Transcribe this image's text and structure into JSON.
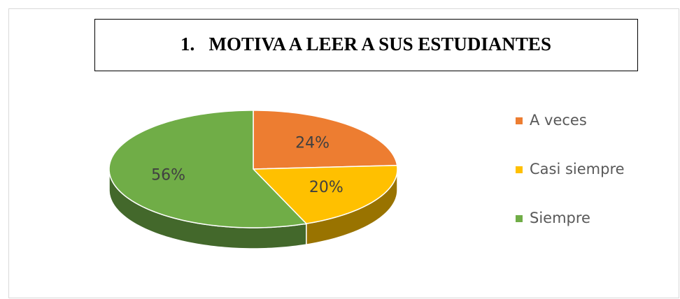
{
  "chart_data": {
    "type": "pie3d",
    "title": "1.   MOTIVA A LEER A SUS ESTUDIANTES",
    "categories": [
      "A veces",
      "Casi siempre",
      "Siempre"
    ],
    "values": [
      24,
      20,
      56
    ],
    "value_labels": [
      "24%",
      "20%",
      "56%"
    ],
    "colors": [
      "#ed7d31",
      "#ffc000",
      "#70ad47"
    ],
    "legend": "right"
  }
}
